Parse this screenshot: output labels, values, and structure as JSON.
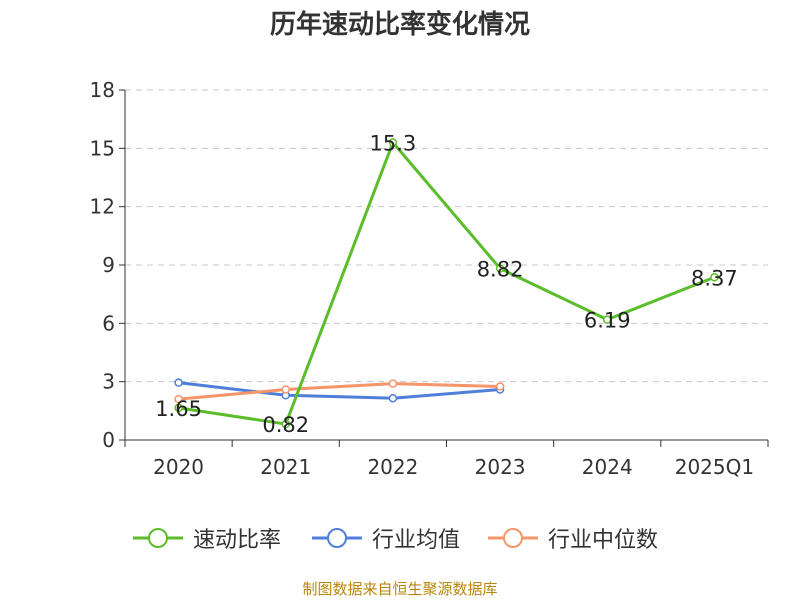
{
  "chart_data": {
    "type": "line",
    "title": "历年速动比率变化情况",
    "categories": [
      "2020",
      "2021",
      "2022",
      "2023",
      "2024",
      "2025Q1"
    ],
    "ylim": [
      0,
      18
    ],
    "yticks": [
      0,
      3,
      6,
      9,
      12,
      15,
      18
    ],
    "grid": true,
    "legend_position": "bottom",
    "series": [
      {
        "name": "速动比率",
        "color": "#5cbd2b",
        "values": [
          1.65,
          0.82,
          15.3,
          8.82,
          6.19,
          8.37
        ],
        "labels": [
          "1.65",
          "0.82",
          "15.3",
          "8.82",
          "6.19",
          "8.37"
        ],
        "show_labels": true
      },
      {
        "name": "行业均值",
        "color": "#4f7fd9",
        "values": [
          2.95,
          2.3,
          2.15,
          2.6,
          null,
          null
        ],
        "show_labels": false
      },
      {
        "name": "行业中位数",
        "color": "#f5956a",
        "values": [
          2.1,
          2.6,
          2.9,
          2.75,
          null,
          null
        ],
        "show_labels": false
      }
    ]
  },
  "source_note": "制图数据来自恒生聚源数据库"
}
